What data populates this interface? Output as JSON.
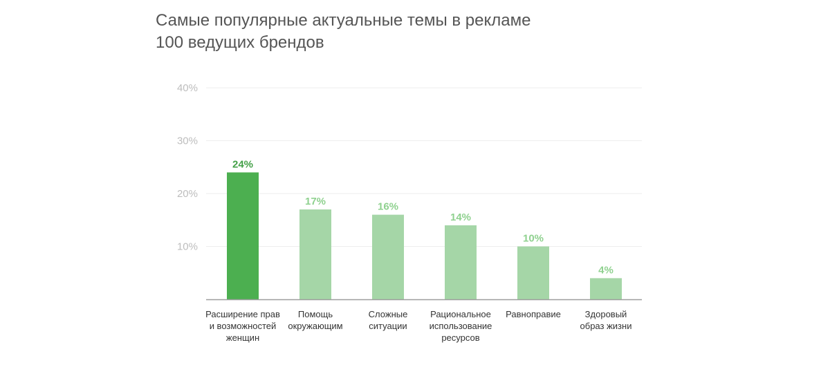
{
  "chart_data": {
    "type": "bar",
    "title": "Самые популярные актуальные темы в рекламе 100 ведущих брендов",
    "categories": [
      "Расширение прав\nи возможностей\nженщин",
      "Помощь\nокружающим",
      "Сложные\nситуации",
      "Рациональное\nиспользование\nресурсов",
      "Равноправие",
      "Здоровый\nобраз жизни"
    ],
    "values": [
      24,
      17,
      16,
      14,
      10,
      4
    ],
    "value_labels": [
      "24%",
      "17%",
      "16%",
      "14%",
      "10%",
      "4%"
    ],
    "ylim": [
      0,
      40
    ],
    "yticks": [
      10,
      20,
      30,
      40
    ],
    "ytick_labels": [
      "10%",
      "20%",
      "30%",
      "40%"
    ],
    "xlabel": "",
    "ylabel": "",
    "grid": true,
    "colors": {
      "highlight_bar": "#4caf50",
      "highlight_label": "#43a047",
      "bar": "#a5d6a7",
      "bar_label": "#8fd18f",
      "grid": "#eeeeee",
      "axis": "#9e9e9e"
    }
  }
}
